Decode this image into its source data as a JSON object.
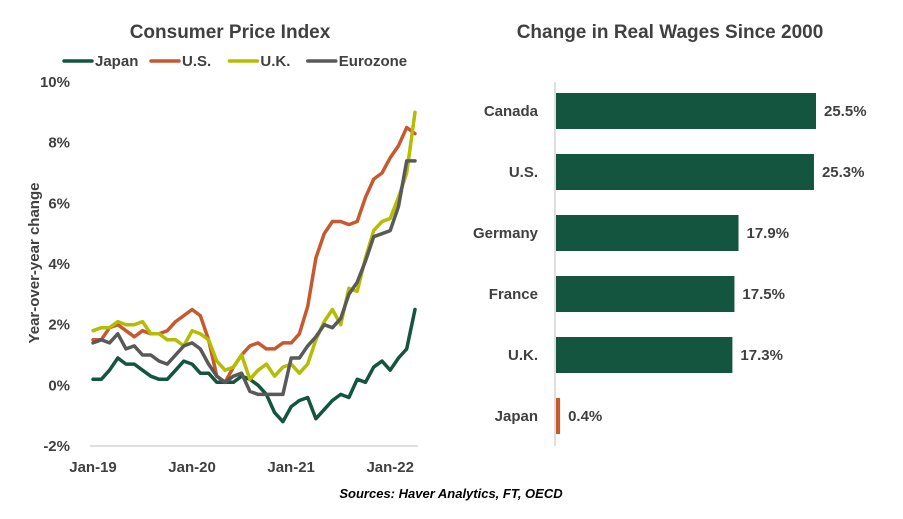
{
  "source_note": "Sources: Haver Analytics, FT, OECD",
  "chart_data": [
    {
      "type": "line",
      "title": "Consumer Price Index",
      "ylabel": "Year-over-year change",
      "ylim": [
        -2,
        10
      ],
      "yticks": [
        "-2%",
        "0%",
        "2%",
        "4%",
        "6%",
        "8%",
        "10%"
      ],
      "xticks": [
        "Jan-19",
        "Jan-20",
        "Jan-21",
        "Jan-22"
      ],
      "x_start": "Jan-19",
      "legend_position": "top",
      "series": [
        {
          "name": "Japan",
          "color": "#13553f",
          "values": [
            0.2,
            0.2,
            0.5,
            0.9,
            0.7,
            0.7,
            0.5,
            0.3,
            0.2,
            0.2,
            0.5,
            0.8,
            0.7,
            0.4,
            0.4,
            0.1,
            0.1,
            0.1,
            0.3,
            0.2,
            0.0,
            -0.3,
            -0.9,
            -1.2,
            -0.7,
            -0.5,
            -0.4,
            -1.1,
            -0.8,
            -0.5,
            -0.3,
            -0.4,
            0.2,
            0.1,
            0.6,
            0.8,
            0.5,
            0.9,
            1.2,
            2.5
          ]
        },
        {
          "name": "U.S.",
          "color": "#c65a2e",
          "values": [
            1.5,
            1.5,
            1.9,
            2.0,
            1.8,
            1.6,
            1.8,
            1.7,
            1.7,
            1.8,
            2.1,
            2.3,
            2.5,
            2.3,
            1.5,
            0.3,
            0.1,
            0.6,
            1.0,
            1.3,
            1.4,
            1.2,
            1.2,
            1.4,
            1.4,
            1.7,
            2.6,
            4.2,
            5.0,
            5.4,
            5.4,
            5.3,
            5.4,
            6.2,
            6.8,
            7.0,
            7.5,
            7.9,
            8.5,
            8.3
          ]
        },
        {
          "name": "U.K.",
          "color": "#b4bd00",
          "values": [
            1.8,
            1.9,
            1.9,
            2.1,
            2.0,
            2.0,
            2.1,
            1.7,
            1.7,
            1.5,
            1.5,
            1.3,
            1.8,
            1.7,
            1.5,
            0.8,
            0.5,
            0.6,
            1.0,
            0.2,
            0.5,
            0.7,
            0.3,
            0.6,
            0.7,
            0.4,
            0.7,
            1.5,
            2.1,
            2.5,
            2.0,
            3.2,
            3.1,
            4.2,
            5.1,
            5.4,
            5.5,
            6.2,
            7.0,
            9.0
          ]
        },
        {
          "name": "Eurozone",
          "color": "#595959",
          "values": [
            1.4,
            1.5,
            1.4,
            1.7,
            1.2,
            1.3,
            1.0,
            1.0,
            0.8,
            0.7,
            1.0,
            1.3,
            1.4,
            1.2,
            0.7,
            0.3,
            0.1,
            0.3,
            0.4,
            -0.2,
            -0.3,
            -0.3,
            -0.3,
            -0.3,
            0.9,
            0.9,
            1.3,
            1.6,
            2.0,
            1.9,
            2.2,
            3.0,
            3.4,
            4.1,
            4.9,
            5.0,
            5.1,
            5.9,
            7.4,
            7.4
          ]
        }
      ]
    },
    {
      "type": "bar",
      "orientation": "horizontal",
      "title": "Change in Real Wages Since 2000",
      "categories": [
        "Canada",
        "U.S.",
        "Germany",
        "France",
        "U.K.",
        "Japan"
      ],
      "values": [
        25.5,
        25.3,
        17.9,
        17.5,
        17.3,
        0.4
      ],
      "value_labels": [
        "25.5%",
        "25.3%",
        "17.9%",
        "17.5%",
        "17.3%",
        "0.4%"
      ],
      "colors": [
        "#13553f",
        "#13553f",
        "#13553f",
        "#13553f",
        "#13553f",
        "#c65a2e"
      ],
      "xlim": [
        0,
        25.5
      ]
    }
  ]
}
